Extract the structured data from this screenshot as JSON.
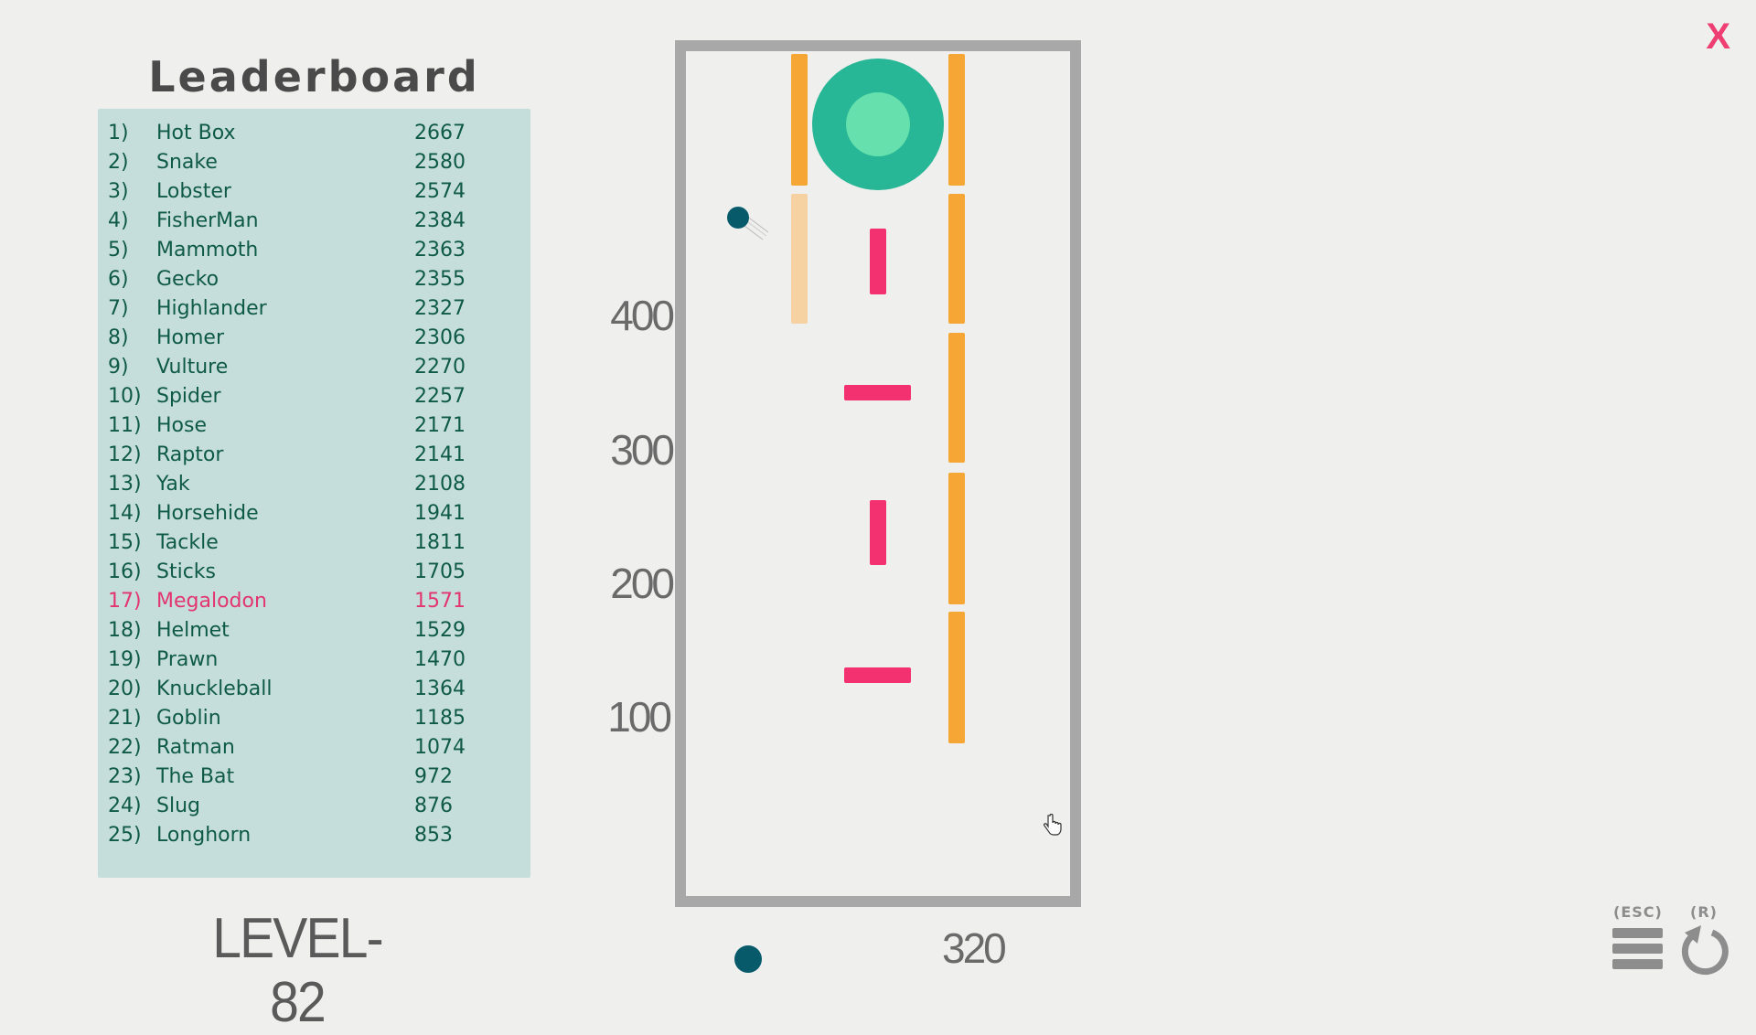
{
  "leaderboard": {
    "title": "Leaderboard",
    "entries": [
      {
        "rank": "1)",
        "name": "Hot Box",
        "score": "2667"
      },
      {
        "rank": "2)",
        "name": "Snake",
        "score": "2580"
      },
      {
        "rank": "3)",
        "name": "Lobster",
        "score": "2574"
      },
      {
        "rank": "4)",
        "name": "FisherMan",
        "score": "2384"
      },
      {
        "rank": "5)",
        "name": "Mammoth",
        "score": "2363"
      },
      {
        "rank": "6)",
        "name": "Gecko",
        "score": "2355"
      },
      {
        "rank": "7)",
        "name": "Highlander",
        "score": "2327"
      },
      {
        "rank": "8)",
        "name": "Homer",
        "score": "2306"
      },
      {
        "rank": "9)",
        "name": "Vulture",
        "score": "2270"
      },
      {
        "rank": "10)",
        "name": "Spider",
        "score": "2257"
      },
      {
        "rank": "11)",
        "name": "Hose",
        "score": "2171"
      },
      {
        "rank": "12)",
        "name": "Raptor",
        "score": "2141"
      },
      {
        "rank": "13)",
        "name": "Yak",
        "score": "2108"
      },
      {
        "rank": "14)",
        "name": "Horsehide",
        "score": "1941"
      },
      {
        "rank": "15)",
        "name": "Tackle",
        "score": "1811"
      },
      {
        "rank": "16)",
        "name": "Sticks",
        "score": "1705"
      },
      {
        "rank": "17)",
        "name": "Megalodon",
        "score": "1571",
        "highlight": true
      },
      {
        "rank": "18)",
        "name": "Helmet",
        "score": "1529"
      },
      {
        "rank": "19)",
        "name": "Prawn",
        "score": "1470"
      },
      {
        "rank": "20)",
        "name": "Knuckleball",
        "score": "1364"
      },
      {
        "rank": "21)",
        "name": "Goblin",
        "score": "1185"
      },
      {
        "rank": "22)",
        "name": "Ratman",
        "score": "1074"
      },
      {
        "rank": "23)",
        "name": "The Bat",
        "score": "972"
      },
      {
        "rank": "24)",
        "name": "Slug",
        "score": "876"
      },
      {
        "rank": "25)",
        "name": "Longhorn",
        "score": "853"
      }
    ]
  },
  "level_label": "LEVEL-82",
  "height_markers": [
    "400",
    "300",
    "200",
    "100"
  ],
  "score": "320",
  "controls": {
    "menu_key": "(ESC)",
    "restart_key": "(R)",
    "close_label": "X"
  },
  "colors": {
    "panel": "#c6dedb",
    "text": "#0e5a47",
    "highlight": "#e2356f",
    "wall": "#f6a634",
    "wall_faded": "#f6d2a2",
    "obstacle": "#f43170",
    "goal_outer": "#27b796",
    "goal_inner": "#66e0ac",
    "ball": "#075a6a",
    "frame": "#a8a8a8"
  },
  "icons": [
    "menu-icon",
    "restart-icon",
    "close-icon",
    "hand-cursor-icon"
  ]
}
